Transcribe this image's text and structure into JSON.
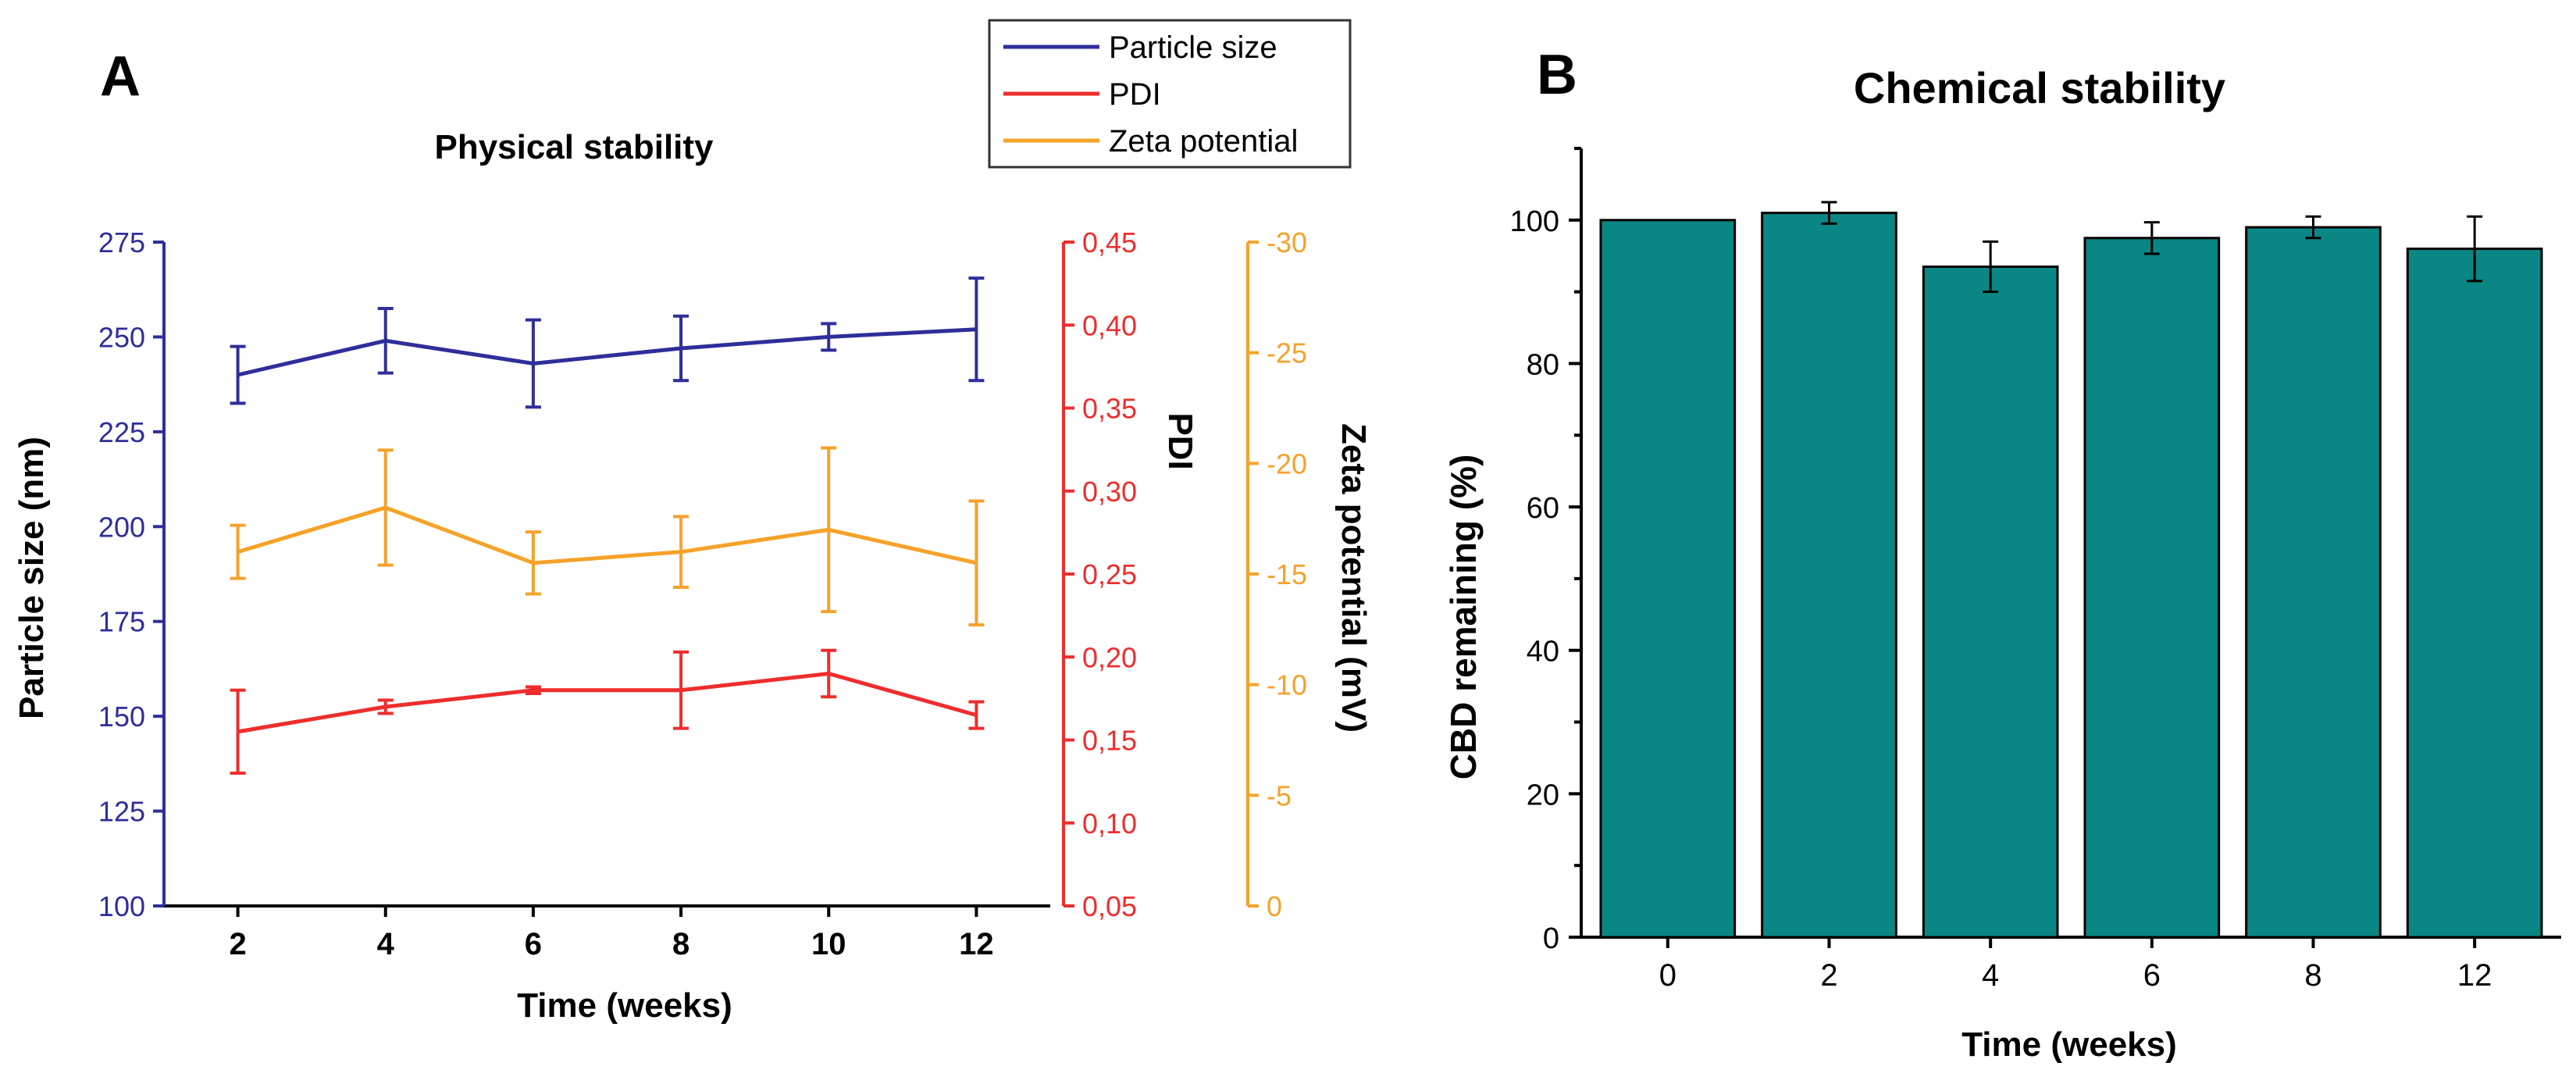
{
  "colors": {
    "particle": "#2E2E9A",
    "pdi": "#EE2D2D",
    "zeta": "#F5A22A",
    "bar_fill": "#0A8785",
    "bar_stroke": "#000000",
    "axis": "#000000"
  },
  "chart_data": [
    {
      "panel_label": "A",
      "type": "line",
      "title": "Physical stability",
      "xlabel": "Time (weeks)",
      "x": [
        2,
        4,
        6,
        8,
        10,
        12
      ],
      "xlim": [
        1,
        13
      ],
      "x_ticks": [
        "2",
        "4",
        "6",
        "8",
        "10",
        "12"
      ],
      "legend": {
        "placement": "top-right",
        "entries": [
          "Particle size",
          "PDI",
          "Zeta potential"
        ]
      },
      "axes": {
        "particle": {
          "label": "Particle size (nm)",
          "range": [
            100,
            275
          ],
          "ticks": [
            "100",
            "125",
            "150",
            "175",
            "200",
            "225",
            "250",
            "275"
          ]
        },
        "pdi": {
          "label": "PDI",
          "range": [
            0.05,
            0.45
          ],
          "ticks": [
            "0,05",
            "0,10",
            "0,15",
            "0,20",
            "0,25",
            "0,30",
            "0,35",
            "0,40",
            "0,45"
          ]
        },
        "zeta": {
          "label": "Zeta potential (mV)",
          "range": [
            0,
            -30
          ],
          "ticks": [
            "0",
            "-5",
            "-10",
            "-15",
            "-20",
            "-25",
            "-30"
          ]
        }
      },
      "series": [
        {
          "name": "Particle size",
          "axis": "particle",
          "values": [
            240,
            249,
            243,
            247,
            250,
            252
          ],
          "errors": [
            7.5,
            8.5,
            11.5,
            8.5,
            3.5,
            13.5
          ]
        },
        {
          "name": "PDI",
          "axis": "pdi",
          "values": [
            0.155,
            0.17,
            0.18,
            0.18,
            0.19,
            0.165
          ],
          "errors": [
            0.025,
            0.004,
            0.002,
            0.023,
            0.014,
            0.008
          ]
        },
        {
          "name": "Zeta potential",
          "axis": "zeta",
          "values": [
            -16,
            -18,
            -15.5,
            -16,
            -17,
            -15.5
          ],
          "errors": [
            1.2,
            2.6,
            1.4,
            1.6,
            3.7,
            2.8
          ]
        }
      ]
    },
    {
      "panel_label": "B",
      "type": "bar",
      "title": "Chemical stability",
      "xlabel": "Time (weeks)",
      "ylabel": "CBD remaining (%)",
      "categories": [
        "0",
        "2",
        "4",
        "6",
        "8",
        "12"
      ],
      "values": [
        100,
        101,
        93.5,
        97.5,
        99,
        96
      ],
      "errors": [
        0,
        1.5,
        3.5,
        2.2,
        1.5,
        4.5
      ],
      "ylim": [
        0,
        110
      ],
      "y_ticks": [
        "0",
        "20",
        "40",
        "60",
        "80",
        "100"
      ]
    }
  ]
}
